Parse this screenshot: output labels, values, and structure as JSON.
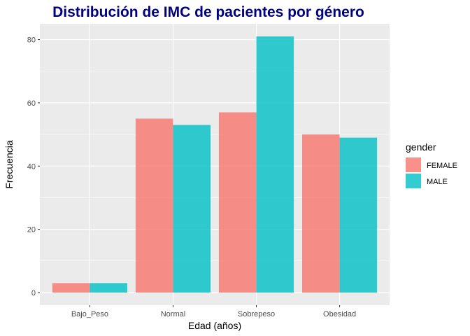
{
  "chart_data": {
    "type": "bar",
    "title": "Distribución de IMC de pacientes por género",
    "xlabel": "Edad (años)",
    "ylabel": "Frecuencia",
    "categories": [
      "Bajo_Peso",
      "Normal",
      "Sobrepeso",
      "Obesidad"
    ],
    "series": [
      {
        "name": "FEMALE",
        "values": [
          3,
          55,
          57,
          50
        ],
        "color": "#F8766D"
      },
      {
        "name": "MALE",
        "values": [
          3,
          53,
          81,
          49
        ],
        "color": "#00BFC4"
      }
    ],
    "ylim": [
      -4,
      85
    ],
    "yticks": [
      0,
      20,
      40,
      60,
      80
    ],
    "legend": {
      "title": "gender",
      "position": "right"
    },
    "grid": true,
    "title_color": "#000080",
    "panel_color": "#EBEBEB"
  }
}
